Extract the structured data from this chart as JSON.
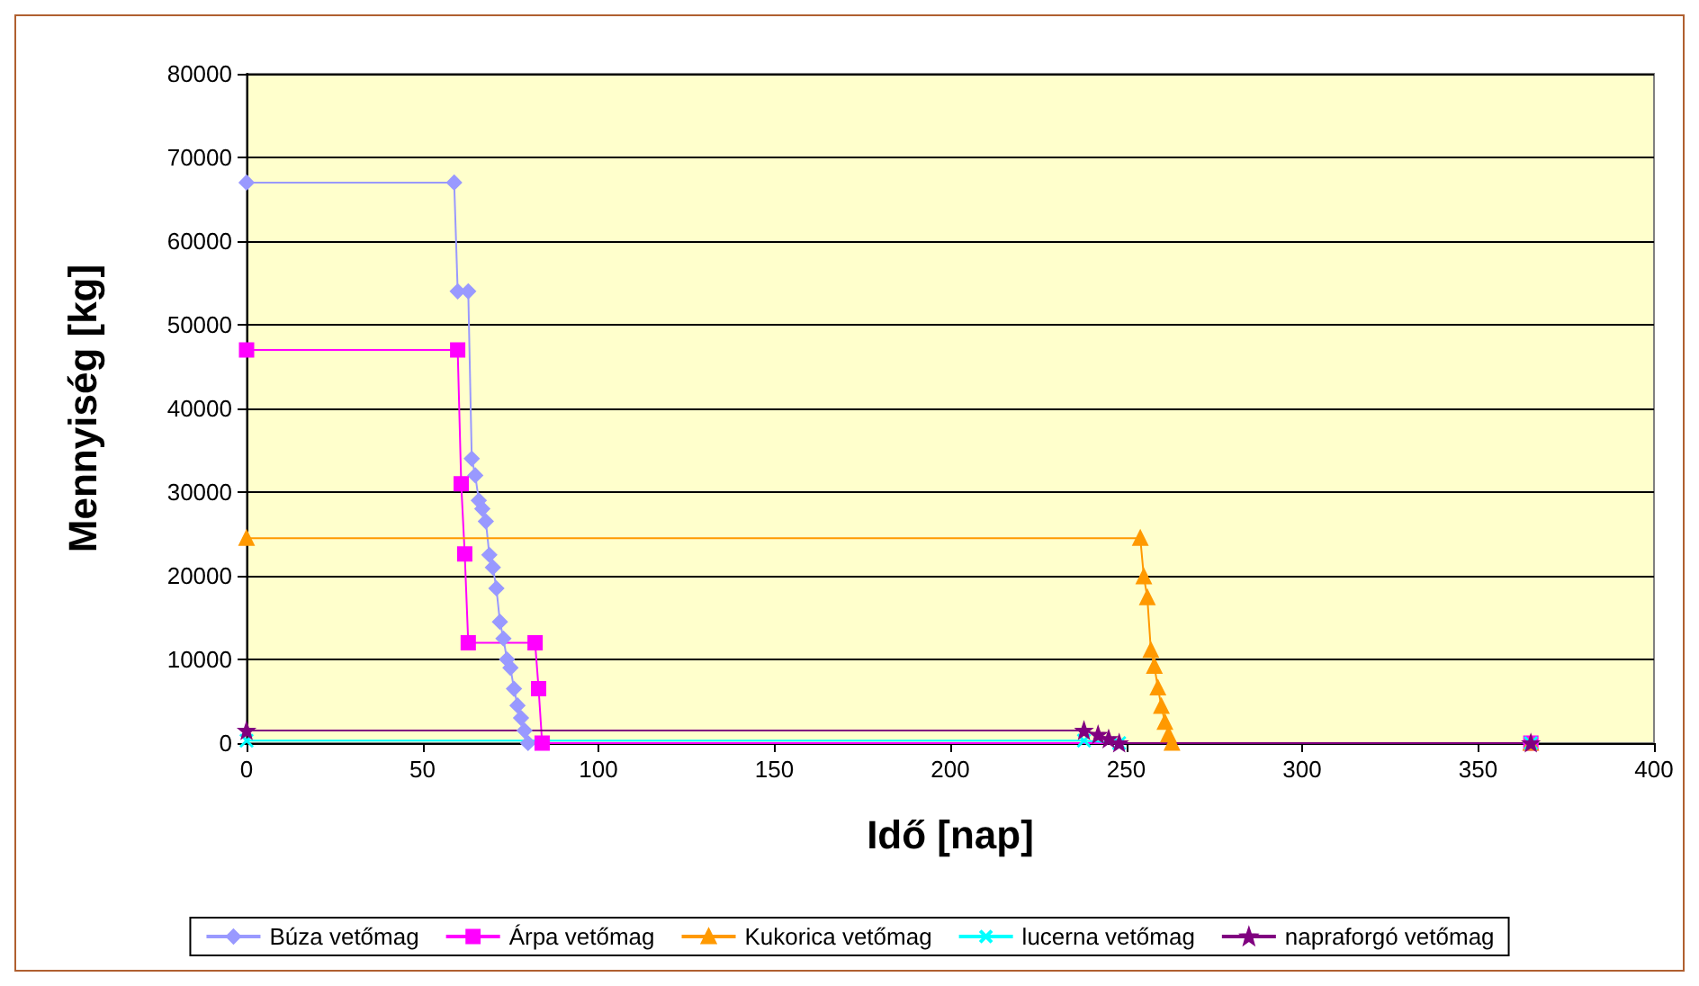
{
  "chart_data": {
    "type": "line",
    "xlabel": "Idő [nap]",
    "ylabel": "Mennyiség [kg]",
    "xlim": [
      0,
      400
    ],
    "xticks": [
      0,
      50,
      100,
      150,
      200,
      250,
      300,
      350,
      400
    ],
    "ylim": [
      0,
      80000
    ],
    "yticks": [
      0,
      10000,
      20000,
      30000,
      40000,
      50000,
      60000,
      70000,
      80000
    ],
    "grid": "y",
    "legend": "bottom",
    "series": [
      {
        "name": "Búza vetőmag",
        "color": "#9999ff",
        "marker": "diamond",
        "x": [
          0,
          59,
          60,
          63,
          64,
          65,
          66,
          67,
          68,
          69,
          70,
          71,
          72,
          73,
          74,
          75,
          76,
          77,
          78,
          79,
          80,
          365
        ],
        "values": [
          67000,
          67000,
          54000,
          54000,
          34000,
          32000,
          29000,
          28000,
          26500,
          22500,
          21000,
          18500,
          14500,
          12500,
          10000,
          9000,
          6500,
          4500,
          3000,
          1500,
          0,
          0
        ]
      },
      {
        "name": "Árpa vetőmag",
        "color": "#ff00ff",
        "marker": "square",
        "x": [
          0,
          60,
          61,
          62,
          63,
          82,
          83,
          84,
          365
        ],
        "values": [
          47000,
          47000,
          31000,
          22600,
          12000,
          12000,
          6500,
          0,
          0
        ]
      },
      {
        "name": "Kukorica vetőmag",
        "color": "#ff9900",
        "marker": "triangle",
        "x": [
          0,
          254,
          255,
          256,
          257,
          258,
          259,
          260,
          261,
          262,
          263,
          365
        ],
        "values": [
          24500,
          24500,
          19900,
          17400,
          11100,
          9200,
          6600,
          4400,
          2500,
          1000,
          0,
          0
        ]
      },
      {
        "name": "lucerna vetőmag",
        "color": "#00ffff",
        "marker": "cross",
        "x": [
          0,
          238,
          248,
          365
        ],
        "values": [
          300,
          300,
          0,
          0
        ]
      },
      {
        "name": "napraforgó vetőmag",
        "color": "#800080",
        "marker": "star",
        "x": [
          0,
          238,
          242,
          245,
          248,
          365
        ],
        "values": [
          1500,
          1500,
          1000,
          500,
          0,
          0
        ]
      }
    ]
  }
}
